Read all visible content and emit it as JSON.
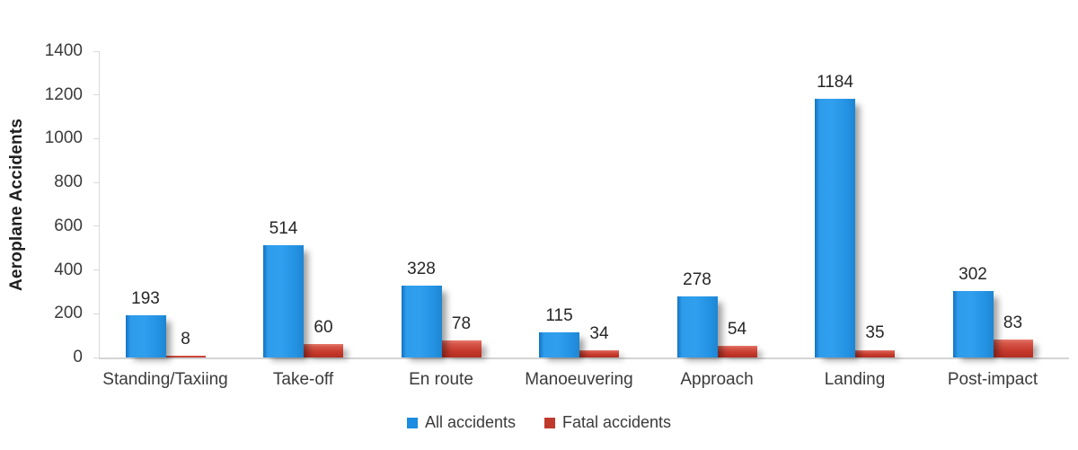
{
  "chart_data": {
    "type": "bar",
    "categories": [
      "Standing/Taxiing",
      "Take-off",
      "En route",
      "Manoeuvering",
      "Approach",
      "Landing",
      "Post-impact"
    ],
    "series": [
      {
        "name": "All accidents",
        "color": "#1b8ce0",
        "values": [
          193,
          514,
          328,
          115,
          278,
          1184,
          302
        ]
      },
      {
        "name": "Fatal accidents",
        "color": "#bf3a2d",
        "values": [
          8,
          60,
          78,
          34,
          54,
          35,
          83
        ]
      }
    ],
    "title": "",
    "xlabel": "",
    "ylabel": "Aeroplane Accidents",
    "ylim": [
      0,
      1400
    ],
    "yticks": [
      0,
      200,
      400,
      600,
      800,
      1000,
      1200,
      1400
    ],
    "grid": false,
    "legend_position": "bottom",
    "data_labels_shown": true
  },
  "colors": {
    "bar_blue": "#2496e8",
    "bar_red": "#c63a2d",
    "axis_line": "#d9d9d9",
    "text": "#3b3b3b"
  }
}
